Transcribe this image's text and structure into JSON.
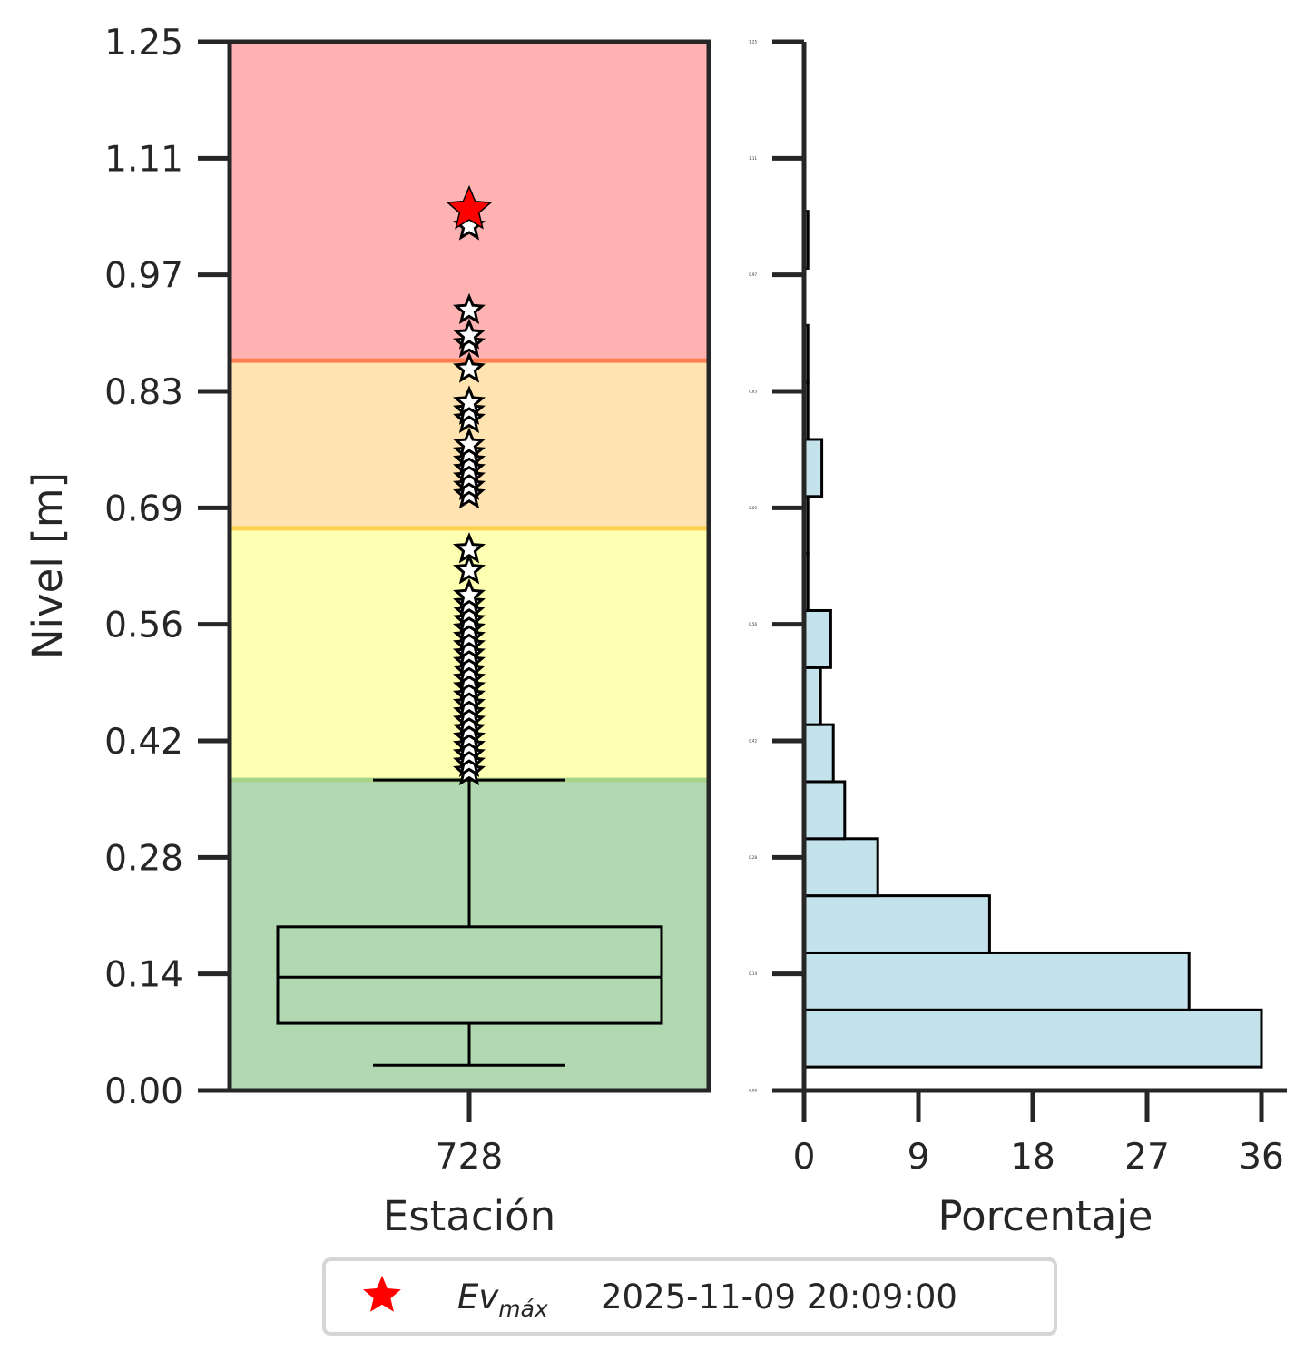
{
  "chart_data": [
    {
      "type": "box",
      "xlabel": "Estación",
      "ylabel": "Nivel [m]",
      "ylim": [
        0,
        1.25
      ],
      "yticks": [
        "0.00",
        "0.14",
        "0.28",
        "0.42",
        "0.56",
        "0.69",
        "0.83",
        "0.97",
        "1.11",
        "1.25"
      ],
      "categories": [
        "728"
      ],
      "thresholds": [
        {
          "from": 0.0,
          "to": 0.37,
          "color": "#b2d8b2"
        },
        {
          "from": 0.37,
          "to": 0.67,
          "color": "#ffffb2"
        },
        {
          "from": 0.67,
          "to": 0.87,
          "color": "#ffe4b2"
        },
        {
          "from": 0.87,
          "to": 1.25,
          "color": "#ffb2b2"
        }
      ],
      "threshold_lines": [
        {
          "value": 0.37,
          "color": "#a8d48a"
        },
        {
          "value": 0.67,
          "color": "#ffd24d"
        },
        {
          "value": 0.87,
          "color": "#ff7f50"
        }
      ],
      "box": {
        "whisker_low": 0.03,
        "q1": 0.08,
        "median": 0.135,
        "q3": 0.195,
        "whisker_high": 0.37
      },
      "outliers": [
        0.38,
        0.39,
        0.4,
        0.41,
        0.42,
        0.43,
        0.44,
        0.45,
        0.46,
        0.47,
        0.48,
        0.49,
        0.5,
        0.51,
        0.52,
        0.53,
        0.54,
        0.55,
        0.56,
        0.57,
        0.58,
        0.59,
        0.62,
        0.645,
        0.71,
        0.72,
        0.73,
        0.74,
        0.75,
        0.76,
        0.77,
        0.8,
        0.81,
        0.82,
        0.86,
        0.89,
        0.9,
        0.93,
        1.03
      ],
      "max_event": 1.05
    },
    {
      "type": "histogram",
      "orientation": "horizontal",
      "xlabel": "Porcentaje",
      "xlim": [
        0,
        38
      ],
      "xticks": [
        "0",
        "9",
        "18",
        "27",
        "36"
      ],
      "ylim": [
        0,
        1.25
      ],
      "yticks": [
        "0.00",
        "0.14",
        "0.28",
        "0.42",
        "0.56",
        "0.69",
        "0.83",
        "0.97",
        "1.11",
        "1.25"
      ],
      "bin_width": 0.068,
      "bins": [
        {
          "from": 0.028,
          "pct": 36.0
        },
        {
          "from": 0.096,
          "pct": 30.3
        },
        {
          "from": 0.164,
          "pct": 14.6
        },
        {
          "from": 0.232,
          "pct": 5.8
        },
        {
          "from": 0.3,
          "pct": 3.2
        },
        {
          "from": 0.368,
          "pct": 2.3
        },
        {
          "from": 0.436,
          "pct": 1.3
        },
        {
          "from": 0.504,
          "pct": 2.1
        },
        {
          "from": 0.572,
          "pct": 0.3
        },
        {
          "from": 0.64,
          "pct": 0.3
        },
        {
          "from": 0.708,
          "pct": 1.4
        },
        {
          "from": 0.776,
          "pct": 0.3
        },
        {
          "from": 0.844,
          "pct": 0.3
        },
        {
          "from": 0.98,
          "pct": 0.3
        }
      ],
      "fill": "#c3e2ec"
    }
  ],
  "legend": {
    "symbol_color": "#ff0000",
    "label_main": "Ev",
    "label_sub": "máx",
    "date": "2025-11-09 20:09:00"
  }
}
